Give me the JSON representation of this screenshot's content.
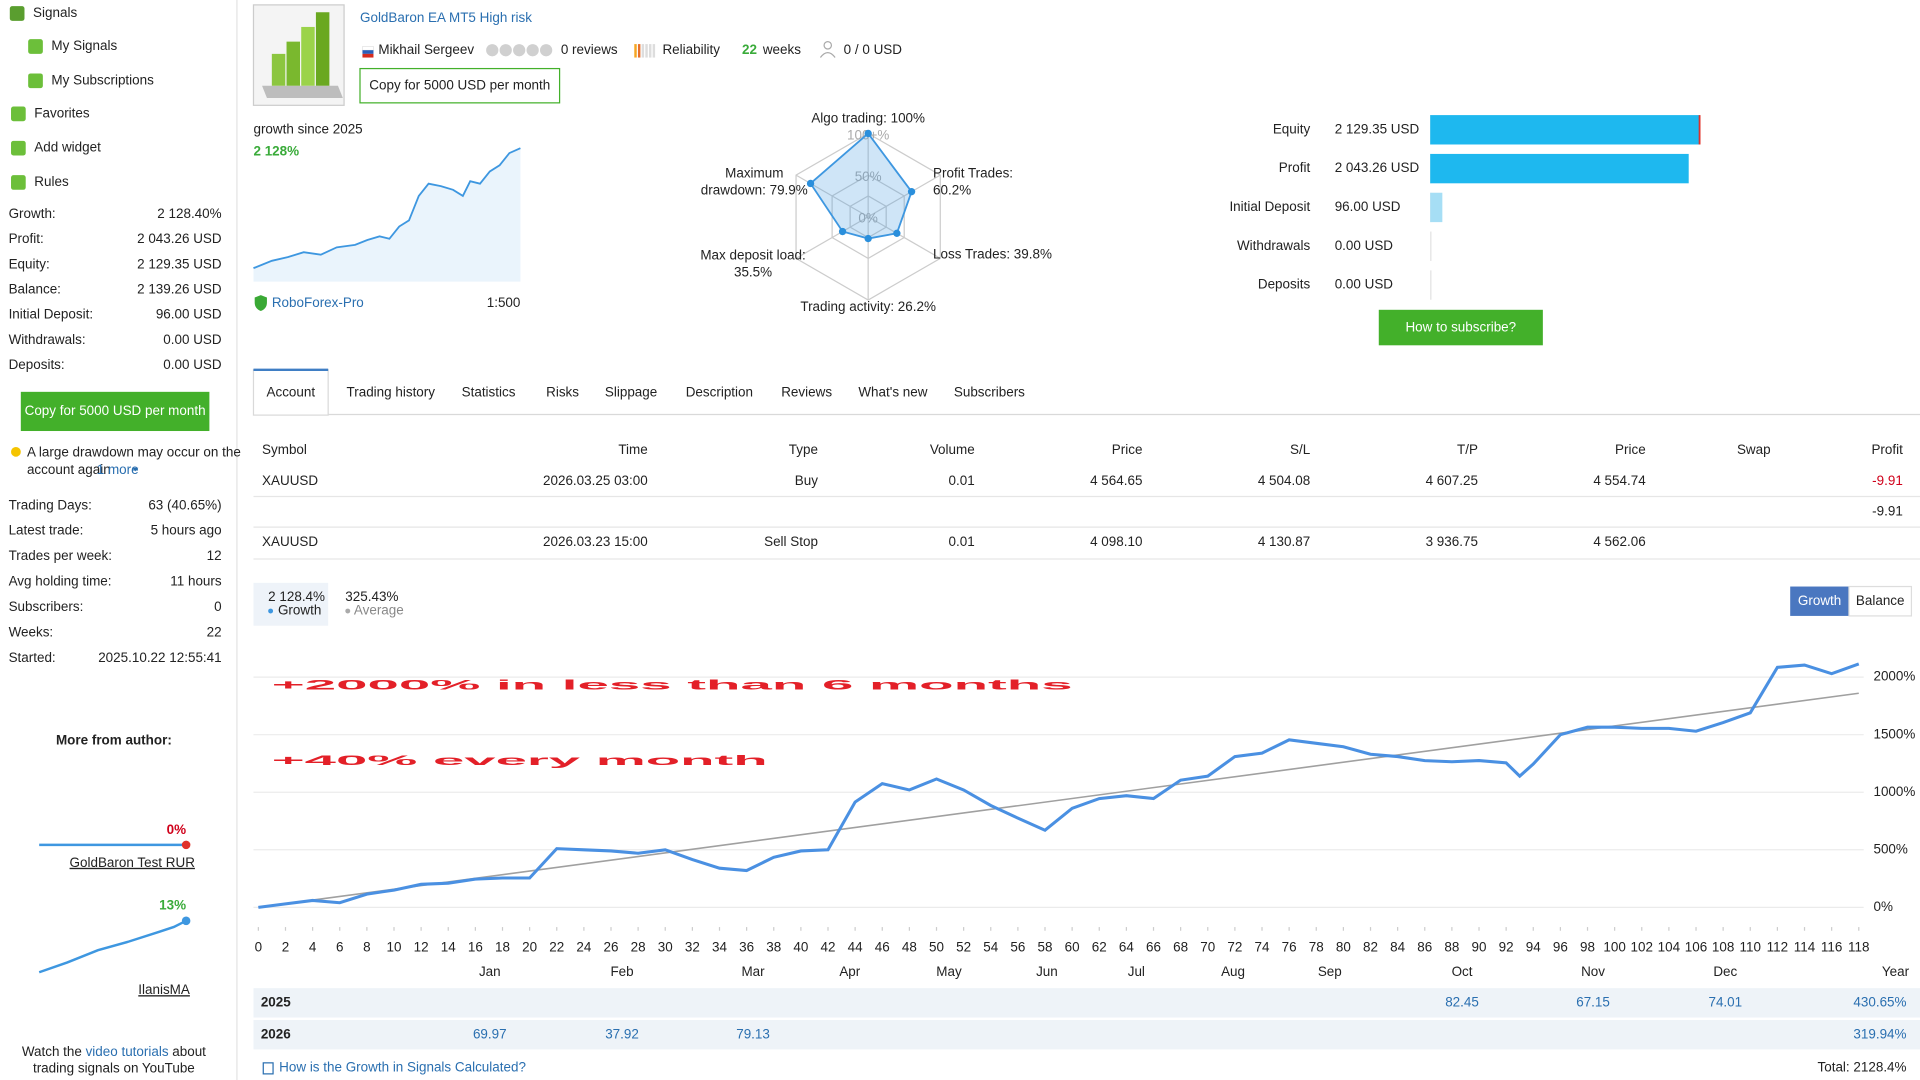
{
  "sidebar": {
    "nav": [
      "Signals",
      "My Signals",
      "My Subscriptions",
      "Favorites",
      "Add widget",
      "Rules"
    ],
    "stats": [
      [
        "Growth:",
        "2 128.40%"
      ],
      [
        "Profit:",
        "2 043.26 USD"
      ],
      [
        "Equity:",
        "2 129.35 USD"
      ],
      [
        "Balance:",
        "2 139.26 USD"
      ],
      [
        "Initial Deposit:",
        "96.00 USD"
      ],
      [
        "Withdrawals:",
        "0.00 USD"
      ],
      [
        "Deposits:",
        "0.00 USD"
      ]
    ],
    "copy_button": "Copy for 5000 USD per month",
    "warning": [
      "A large drawdown may occur on the",
      "account again"
    ],
    "warning_more": "1 more",
    "stats2": [
      [
        "Trading Days:",
        "63 (40.65%)"
      ],
      [
        "Latest trade:",
        "5 hours ago"
      ],
      [
        "Trades per week:",
        "12"
      ],
      [
        "Avg holding time:",
        "11 hours"
      ],
      [
        "Subscribers:",
        "0"
      ],
      [
        "Weeks:",
        "22"
      ],
      [
        "Started:",
        "2025.10.22 12:55:41"
      ]
    ],
    "more_title": "More from author:",
    "author_signals": [
      {
        "name": "GoldBaron Test RUR",
        "growth": "0%"
      },
      {
        "name": "IlanisMA",
        "growth": "13%"
      }
    ],
    "footer": [
      "Watch the",
      "video tutorials",
      "about",
      "trading signals on YouTube"
    ]
  },
  "header": {
    "title": "GoldBaron EA MT5 High risk",
    "author": "Mikhail Sergeev",
    "reviews": "0 reviews",
    "reliability": "Reliability",
    "weeks_num": "22",
    "weeks": "weeks",
    "subscribers": "0 / 0 USD",
    "copy_button": "Copy for 5000 USD per month"
  },
  "growth_box": {
    "label": "growth since 2025",
    "value": "2 128%",
    "broker": "RoboForex-Pro",
    "leverage": "1:500"
  },
  "radar": {
    "rings": [
      "100+%",
      "50%",
      "0%"
    ],
    "axes": [
      {
        "lines": [
          "Algo trading: 100%"
        ],
        "value": 100
      },
      {
        "lines": [
          "Profit Trades:",
          "60.2%"
        ],
        "value": 60.2
      },
      {
        "lines": [
          "Loss Trades: 39.8%"
        ],
        "value": 39.8
      },
      {
        "lines": [
          "Trading activity: 26.2%"
        ],
        "value": 26.2
      },
      {
        "lines": [
          "Max deposit load:",
          "35.5%"
        ],
        "value": 35.5
      },
      {
        "lines": [
          "Maximum",
          "drawdown: 79.9%"
        ],
        "value": 79.9
      }
    ]
  },
  "balance": {
    "rows": [
      {
        "label": "Equity",
        "value_label": "2 129.35 USD",
        "value": 2129.35
      },
      {
        "label": "Profit",
        "value_label": "2 043.26 USD",
        "value": 2043.26
      },
      {
        "label": "Initial Deposit",
        "value_label": "96.00 USD",
        "value": 96
      },
      {
        "label": "Withdrawals",
        "value_label": "0.00 USD",
        "value": 0
      },
      {
        "label": "Deposits",
        "value_label": "0.00 USD",
        "value": 0
      }
    ],
    "button": "How to subscribe?"
  },
  "tabs": [
    "Account",
    "Trading history",
    "Statistics",
    "Risks",
    "Slippage",
    "Description",
    "Reviews",
    "What's new",
    "Subscribers"
  ],
  "trades": {
    "header": {
      "symbol": "Symbol",
      "time": "Time",
      "type": "Type",
      "volume": "Volume",
      "price": "Price",
      "sl": "S/L",
      "tp": "T/P",
      "price2": "Price",
      "swap": "Swap",
      "profit": "Profit"
    },
    "rows": [
      {
        "symbol": "XAUUSD",
        "time": "2026.03.25 03:00",
        "type": "Buy",
        "volume": "0.01",
        "price": "4 564.65",
        "sl": "4 504.08",
        "tp": "4 607.25",
        "price2": "4 554.74",
        "profit": "-9.91"
      },
      {
        "profit": "-9.91"
      },
      {
        "symbol": "XAUUSD",
        "time": "2026.03.23 15:00",
        "type": "Sell Stop",
        "volume": "0.01",
        "price": "4 098.10",
        "sl": "4 130.87",
        "tp": "3 936.75",
        "price2": "4 562.06"
      }
    ]
  },
  "summary": {
    "growth": "2 128.4%",
    "growth_label": "Growth",
    "average": "325.43%",
    "average_label": "Average",
    "buttons": [
      "Growth",
      "Balance"
    ]
  },
  "overlay": [
    "+2000% in less than 6 months",
    "+40% every month"
  ],
  "chart_data": {
    "type": "line",
    "x": [
      0,
      2,
      4,
      6,
      8,
      10,
      12,
      14,
      16,
      18,
      20,
      22,
      24,
      26,
      28,
      30,
      32,
      34,
      36,
      38,
      40,
      42,
      44,
      46,
      48,
      50,
      52,
      54,
      56,
      58,
      60,
      62,
      64,
      66,
      68,
      70,
      72,
      74,
      76,
      78,
      80,
      82,
      84,
      86,
      88,
      90,
      92,
      93,
      94,
      96,
      98,
      100,
      102,
      104,
      106,
      108,
      110,
      112,
      114,
      116,
      118
    ],
    "series": [
      {
        "color": "#4a90e2",
        "values": [
          0,
          30,
          60,
          40,
          115,
          150,
          200,
          210,
          245,
          255,
          255,
          510,
          500,
          490,
          470,
          500,
          415,
          340,
          320,
          435,
          490,
          500,
          915,
          1075,
          1020,
          1115,
          1020,
          885,
          775,
          670,
          860,
          945,
          970,
          945,
          1105,
          1140,
          1310,
          1340,
          1455,
          1425,
          1395,
          1330,
          1310,
          1275,
          1265,
          1275,
          1255,
          1140,
          1245,
          1500,
          1565,
          1565,
          1555,
          1555,
          1530,
          1605,
          1690,
          2085,
          2105,
          2030,
          2115
        ]
      },
      {
        "color": "#a0a0a0",
        "x": [
          0,
          118
        ],
        "values": [
          0,
          1860
        ]
      }
    ],
    "xlim": [
      0,
      118
    ],
    "ylim": [
      -150,
      2250
    ],
    "xticks": [
      0,
      2,
      4,
      6,
      8,
      10,
      12,
      14,
      16,
      18,
      20,
      22,
      24,
      26,
      28,
      30,
      32,
      34,
      36,
      38,
      40,
      42,
      44,
      46,
      48,
      50,
      52,
      54,
      56,
      58,
      60,
      62,
      64,
      66,
      68,
      70,
      72,
      74,
      76,
      78,
      80,
      82,
      84,
      86,
      88,
      90,
      92,
      94,
      96,
      98,
      100,
      102,
      104,
      106,
      108,
      110,
      112,
      114,
      116,
      118
    ],
    "yticks": [
      {
        "value": 0,
        "label": "0%"
      },
      {
        "value": 500,
        "label": "500%"
      },
      {
        "value": 1000,
        "label": "1000%"
      },
      {
        "value": 1500,
        "label": "1500%"
      },
      {
        "value": 2000,
        "label": "2000%"
      }
    ],
    "grid": true
  },
  "year_table": {
    "months": [
      "Jan",
      "Feb",
      "Mar",
      "Apr",
      "May",
      "Jun",
      "Jul",
      "Aug",
      "Sep",
      "Oct",
      "Nov",
      "Dec",
      "Year"
    ],
    "rows": [
      {
        "year": "2025",
        "cells": [
          null,
          null,
          null,
          null,
          null,
          null,
          null,
          null,
          null,
          "82.45",
          "67.15",
          "74.01",
          "430.65%"
        ]
      },
      {
        "year": "2026",
        "cells": [
          "69.97",
          "37.92",
          "79.13",
          null,
          null,
          null,
          null,
          null,
          null,
          null,
          null,
          null,
          "319.94%"
        ]
      }
    ],
    "help": "How is the Growth in Signals Calculated?",
    "total": "Total: 2128.4%"
  }
}
